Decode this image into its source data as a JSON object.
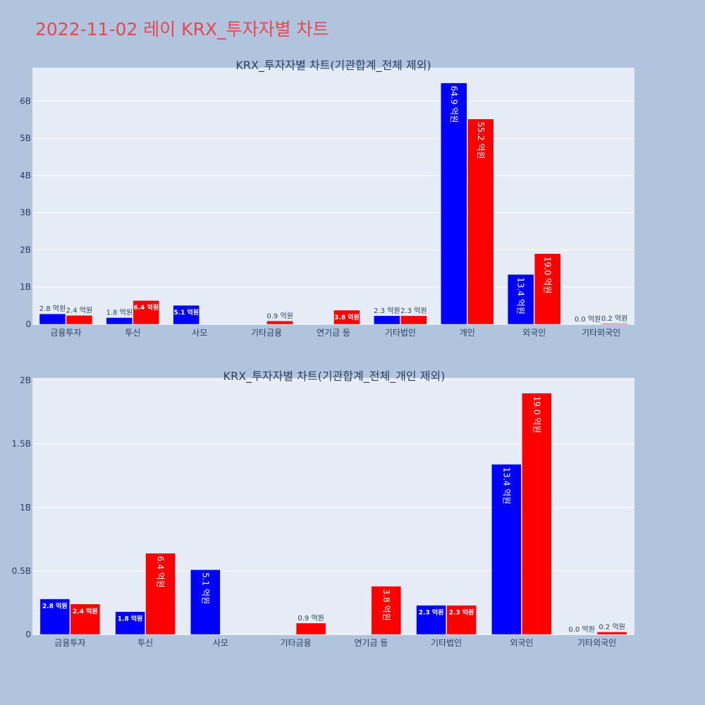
{
  "page": {
    "title": "2022-11-02 레이 KRX_투자자별 차트",
    "background": "#b0c4de",
    "title_color": "#e8474f"
  },
  "colors": {
    "buy": "#0000ff",
    "sell": "#ff0000",
    "plot_bg": "#e5ecf6",
    "grid": "#ffffff",
    "text": "#2a3f5f"
  },
  "chart_data": [
    {
      "type": "bar",
      "title": "KRX_투자자별 차트(기관합계_전체 제외)",
      "categories": [
        "금융투자",
        "투신",
        "사모",
        "기타금융",
        "연기금 등",
        "기타법인",
        "개인",
        "외국인",
        "기타외국인"
      ],
      "ylim": [
        0,
        6.9
      ],
      "yticks": [
        0,
        1,
        2,
        3,
        4,
        5,
        6
      ],
      "ytick_labels": [
        "0",
        "1B",
        "2B",
        "3B",
        "4B",
        "5B",
        "6B"
      ],
      "grid": true,
      "series": [
        {
          "color": "#0000ff",
          "values": [
            0.28,
            0.18,
            0.51,
            0.0,
            0.0,
            0.23,
            6.49,
            1.34,
            0.0
          ],
          "labels": [
            "2.8 억원",
            "1.8 억원",
            "5.1 억원",
            "",
            "",
            "2.3 억원",
            "64.9 억원",
            "13.4 억원",
            "0.0 억원"
          ]
        },
        {
          "color": "#ff0000",
          "values": [
            0.24,
            0.64,
            0.0,
            0.09,
            0.38,
            0.23,
            5.52,
            1.9,
            0.02
          ],
          "labels": [
            "2.4 억원",
            "6.4 억원",
            "",
            "0.9 억원",
            "3.8 억원",
            "2.3 억원",
            "55.2 억원",
            "19.0 억원",
            "0.2 억원"
          ]
        }
      ]
    },
    {
      "type": "bar",
      "title": "KRX_투자자별 차트(기관합계_전체_개인 제외)",
      "categories": [
        "금융투자",
        "투신",
        "사모",
        "기타금융",
        "연기금 등",
        "기타법인",
        "외국인",
        "기타외국인"
      ],
      "ylim": [
        0,
        2.02
      ],
      "yticks": [
        0,
        0.5,
        1,
        1.5,
        2
      ],
      "ytick_labels": [
        "0",
        "0.5B",
        "1B",
        "1.5B",
        "2B"
      ],
      "grid": true,
      "series": [
        {
          "color": "#0000ff",
          "values": [
            0.28,
            0.18,
            0.51,
            0.0,
            0.0,
            0.23,
            1.34,
            0.0
          ],
          "labels": [
            "2.8 억원",
            "1.8 억원",
            "5.1 억원",
            "",
            "",
            "2.3 억원",
            "13.4 억원",
            "0.0 억원"
          ]
        },
        {
          "color": "#ff0000",
          "values": [
            0.24,
            0.64,
            0.0,
            0.09,
            0.38,
            0.23,
            1.9,
            0.02
          ],
          "labels": [
            "2.4 억원",
            "6.4 억원",
            "",
            "0.9 억원",
            "3.8 억원",
            "2.3 억원",
            "19.0 억원",
            "0.2 억원"
          ]
        }
      ]
    }
  ]
}
